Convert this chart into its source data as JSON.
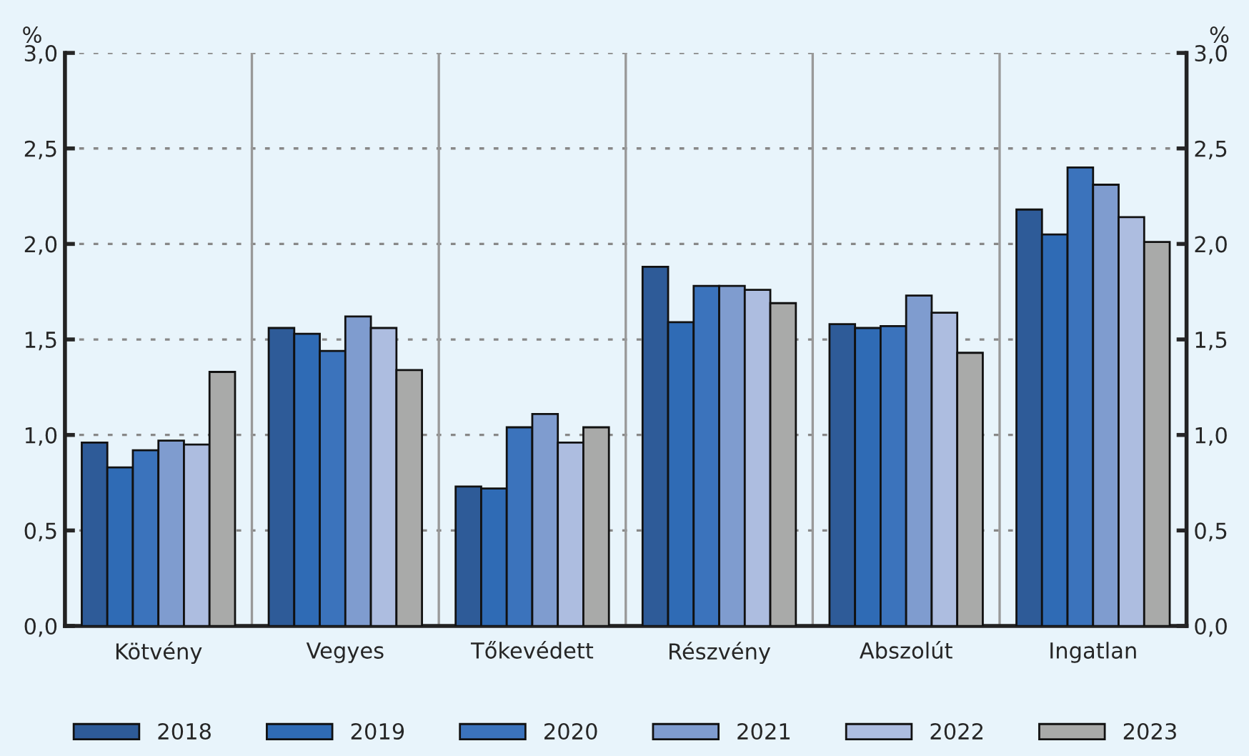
{
  "chart_data": {
    "type": "bar",
    "ylabel": "%",
    "y2label": "%",
    "categories": [
      "Kötvény",
      "Vegyes",
      "Tőkevédett",
      "Részvény",
      "Abszolút",
      "Ingatlan"
    ],
    "series": [
      {
        "name": "2018",
        "color": "#2e5b98",
        "values": [
          0.96,
          1.56,
          0.73,
          1.88,
          1.58,
          2.18
        ]
      },
      {
        "name": "2019",
        "color": "#2f6bb5",
        "values": [
          0.83,
          1.53,
          0.72,
          1.59,
          1.56,
          2.05
        ]
      },
      {
        "name": "2020",
        "color": "#3b73bc",
        "values": [
          0.92,
          1.44,
          1.04,
          1.78,
          1.57,
          2.4
        ]
      },
      {
        "name": "2021",
        "color": "#7f9ccf",
        "values": [
          0.97,
          1.62,
          1.11,
          1.78,
          1.73,
          2.31
        ]
      },
      {
        "name": "2022",
        "color": "#adbde0",
        "values": [
          0.95,
          1.56,
          0.96,
          1.76,
          1.64,
          2.14
        ]
      },
      {
        "name": "2023",
        "color": "#a9aaa9",
        "values": [
          1.33,
          1.34,
          1.04,
          1.69,
          1.43,
          2.01
        ]
      }
    ],
    "ylim": [
      0,
      3
    ],
    "yticks": [
      {
        "value": 0,
        "label": "0,0"
      },
      {
        "value": 0.5,
        "label": "0,5"
      },
      {
        "value": 1,
        "label": "1,0"
      },
      {
        "value": 1.5,
        "label": "1,5"
      },
      {
        "value": 2,
        "label": "2,0"
      },
      {
        "value": 2.5,
        "label": "2,5"
      },
      {
        "value": 3,
        "label": "3,0"
      }
    ],
    "y2lim": [
      0,
      3
    ],
    "y2ticks": [
      {
        "value": 0,
        "label": "0,0"
      },
      {
        "value": 0.5,
        "label": "0,5"
      },
      {
        "value": 1,
        "label": "1,0"
      },
      {
        "value": 1.5,
        "label": "1,5"
      },
      {
        "value": 2,
        "label": "2,0"
      },
      {
        "value": 2.5,
        "label": "2,5"
      },
      {
        "value": 3,
        "label": "3,0"
      }
    ],
    "grid": "y",
    "legend": "bottom"
  }
}
